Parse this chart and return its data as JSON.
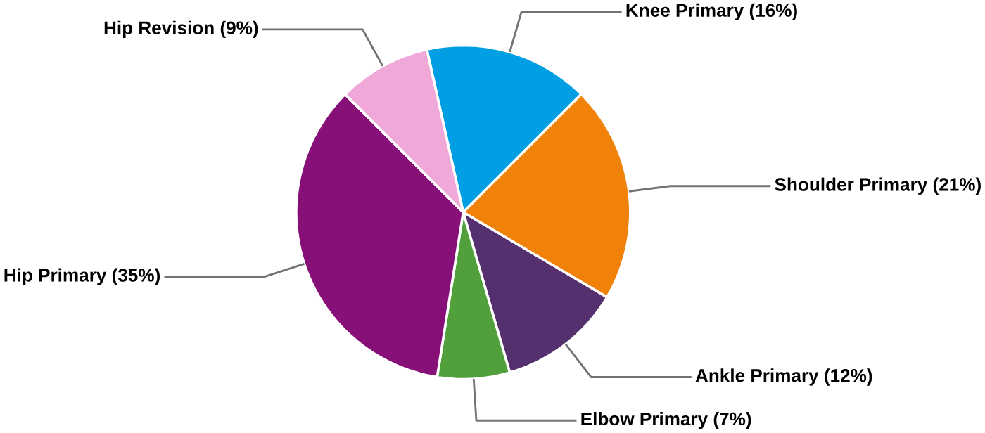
{
  "chart_data": {
    "type": "pie",
    "categories": [
      "Knee Primary (16%)",
      "Shoulder Primary (21%)",
      "Ankle Primary (12%)",
      "Elbow Primary (7%)",
      "Hip Primary (35%)",
      "Hip Revision (9%)"
    ],
    "values": [
      16,
      21,
      12,
      7,
      35,
      9
    ],
    "colors": [
      "#009fe3",
      "#f0820a",
      "#55306e",
      "#52a03c",
      "#871078",
      "#f0a8d8"
    ]
  }
}
